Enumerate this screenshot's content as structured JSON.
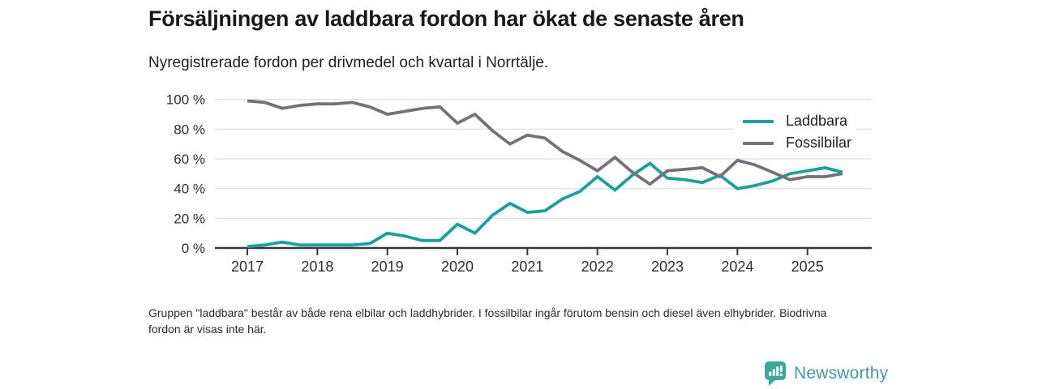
{
  "chart_data": {
    "type": "line",
    "title": "Försäljningen av laddbara fordon har ökat de senaste åren",
    "subtitle": "Nyregistrerade fordon per drivmedel och kvartal i Norrtälje.",
    "note": "Gruppen \"laddbara\" består av både rena elbilar och laddhybrider. I fossilbilar ingår förutom bensin och diesel även elhybrider. Biodrivna fordon är visas inte här.",
    "xlabel": "",
    "ylabel": "",
    "ylim": [
      0,
      100
    ],
    "y_ticks": [
      0,
      20,
      40,
      60,
      80,
      100
    ],
    "y_tick_suffix": " %",
    "x_tick_labels": [
      "2017",
      "2018",
      "2019",
      "2020",
      "2021",
      "2022",
      "2023",
      "2024",
      "2025"
    ],
    "grid": "horizontal",
    "legend_position": "top-right",
    "x": [
      "2017 Q1",
      "2017 Q2",
      "2017 Q3",
      "2017 Q4",
      "2018 Q1",
      "2018 Q2",
      "2018 Q3",
      "2018 Q4",
      "2019 Q1",
      "2019 Q2",
      "2019 Q3",
      "2019 Q4",
      "2020 Q1",
      "2020 Q2",
      "2020 Q3",
      "2020 Q4",
      "2021 Q1",
      "2021 Q2",
      "2021 Q3",
      "2021 Q4",
      "2022 Q1",
      "2022 Q2",
      "2022 Q3",
      "2022 Q4",
      "2023 Q1",
      "2023 Q2",
      "2023 Q3",
      "2023 Q4",
      "2024 Q1",
      "2024 Q2",
      "2024 Q3",
      "2024 Q4",
      "2025 Q1",
      "2025 Q2",
      "2025 Q3"
    ],
    "series": [
      {
        "name": "Laddbara",
        "color": "#14a49a",
        "values": [
          1,
          2,
          4,
          2,
          2,
          2,
          2,
          3,
          10,
          8,
          5,
          5,
          16,
          10,
          22,
          30,
          24,
          25,
          33,
          38,
          48,
          39,
          49,
          57,
          47,
          46,
          44,
          49,
          40,
          42,
          45,
          50,
          52,
          54,
          51
        ]
      },
      {
        "name": "Fossilbilar",
        "color": "#757079",
        "values": [
          99,
          98,
          94,
          96,
          97,
          97,
          98,
          95,
          90,
          92,
          94,
          95,
          84,
          90,
          79,
          70,
          76,
          74,
          65,
          59,
          52,
          61,
          51,
          43,
          52,
          53,
          54,
          48,
          59,
          56,
          51,
          46,
          48,
          48,
          50
        ]
      }
    ]
  },
  "logo": {
    "text": "Newsworthy",
    "icon": "bar-chart-speech-bubble-icon",
    "color": "#3f9c99",
    "icon_color": "#3aa79b"
  },
  "style": {
    "gridline_color": "#e2e2e2",
    "axis_color": "#383838",
    "tick_label_color": "#2e2e2e"
  }
}
